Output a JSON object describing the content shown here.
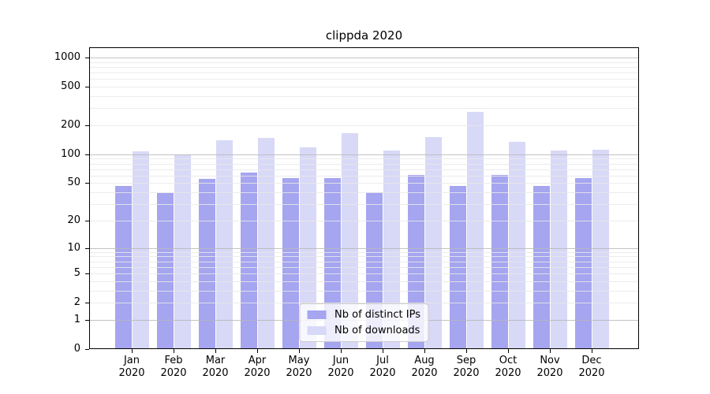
{
  "chart_data": {
    "type": "bar",
    "title": "clippda 2020",
    "x_tick_labels": [
      {
        "month": "Jan",
        "year": "2020"
      },
      {
        "month": "Feb",
        "year": "2020"
      },
      {
        "month": "Mar",
        "year": "2020"
      },
      {
        "month": "Apr",
        "year": "2020"
      },
      {
        "month": "May",
        "year": "2020"
      },
      {
        "month": "Jun",
        "year": "2020"
      },
      {
        "month": "Jul",
        "year": "2020"
      },
      {
        "month": "Aug",
        "year": "2020"
      },
      {
        "month": "Sep",
        "year": "2020"
      },
      {
        "month": "Oct",
        "year": "2020"
      },
      {
        "month": "Nov",
        "year": "2020"
      },
      {
        "month": "Dec",
        "year": "2020"
      }
    ],
    "series": [
      {
        "name": "Nb of distinct IPs",
        "color": "#a5a5f0",
        "values": [
          47,
          39,
          55,
          64,
          57,
          57,
          40,
          61,
          47,
          61,
          47,
          57
        ]
      },
      {
        "name": "Nb of downloads",
        "color": "#d8d8f7",
        "values": [
          107,
          99,
          140,
          147,
          119,
          165,
          109,
          152,
          274,
          135,
          110,
          112
        ]
      }
    ],
    "yscale": "log1p",
    "ylim": [
      0,
      1276
    ],
    "yticks": [
      0,
      1,
      2,
      5,
      10,
      20,
      50,
      100,
      200,
      500,
      1000
    ],
    "grid_major_at": [
      1,
      10,
      100,
      1000
    ],
    "grid": true,
    "legend_position": "lower center",
    "colors": {
      "grid_minor": "#ececec",
      "grid_major": "#c5c5c5",
      "spine": "#000000",
      "legend_border": "#cccccc"
    }
  }
}
